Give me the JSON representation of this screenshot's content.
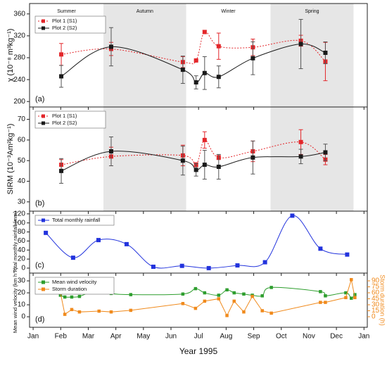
{
  "chart_data": [
    {
      "type": "line",
      "ylabel": "χ (10⁻⁸ m³kg⁻¹)",
      "panel_label": "(a)",
      "xlim": [
        0.87,
        13.12
      ],
      "ylim": [
        190,
        379
      ],
      "yticks": [
        200,
        240,
        280,
        320,
        360
      ],
      "seasons": [
        {
          "name": "Summer",
          "start": 0.87,
          "end": 3.55,
          "shaded": false
        },
        {
          "name": "Autumn",
          "start": 3.55,
          "end": 6.55,
          "shaded": true
        },
        {
          "name": "Winter",
          "start": 6.55,
          "end": 9.61,
          "shaded": false
        },
        {
          "name": "Spring",
          "start": 9.61,
          "end": 12.62,
          "shaded": true
        }
      ],
      "x": [
        2.02,
        3.83,
        6.43,
        6.91,
        7.22,
        7.73,
        8.97,
        10.71,
        11.6
      ],
      "series": [
        {
          "name": "Plot 1 (S1)",
          "color": "#e3262a",
          "line_style": "dotted",
          "values": [
            286,
            296,
            272,
            275,
            327,
            301,
            299,
            311,
            273
          ],
          "errors": [
            20,
            12,
            10,
            0,
            3,
            24,
            15,
            10,
            35
          ]
        },
        {
          "name": "Plot 2 (S2)",
          "color": "#1a1a1a",
          "line_style": "solid",
          "values": [
            246,
            300,
            258,
            235,
            252,
            245,
            279,
            305,
            289
          ],
          "errors": [
            20,
            35,
            25,
            12,
            30,
            20,
            30,
            45,
            20
          ]
        }
      ]
    },
    {
      "type": "line",
      "ylabel": "SIRM (10⁻³Am²kg⁻¹)",
      "panel_label": "(b)",
      "xlim": [
        0.87,
        13.12
      ],
      "ylim": [
        25.5,
        76
      ],
      "yticks": [
        30,
        40,
        50,
        60,
        70
      ],
      "shaded": [
        [
          3.55,
          6.55
        ],
        [
          9.61,
          12.62
        ]
      ],
      "x": [
        2.02,
        3.83,
        6.43,
        6.91,
        7.22,
        7.73,
        8.97,
        10.71,
        11.6
      ],
      "series": [
        {
          "name": "Plot 1 (S1)",
          "color": "#e3262a",
          "line_style": "dotted",
          "values": [
            48,
            52,
            52.5,
            48,
            60,
            51.5,
            54.5,
            59,
            50.5
          ],
          "errors": [
            2.5,
            4.5,
            5,
            1,
            4,
            1,
            5,
            6,
            2.5
          ]
        },
        {
          "name": "Plot 2 (S2)",
          "color": "#1a1a1a",
          "line_style": "solid",
          "values": [
            45,
            54.5,
            50,
            45.5,
            48,
            47,
            51.5,
            52,
            54
          ],
          "errors": [
            6,
            7,
            7,
            3,
            7,
            6,
            8,
            3.5,
            4
          ]
        }
      ]
    },
    {
      "type": "line",
      "ylabel": "Total monthly rainfall (mm)",
      "panel_label": "(c)",
      "xlim": [
        0.87,
        13.12
      ],
      "ylim": [
        -11,
        126
      ],
      "yticks": [
        0,
        20,
        40,
        60,
        80,
        100,
        120
      ],
      "x": [
        1.46,
        2.45,
        3.37,
        4.39,
        5.36,
        6.4,
        7.37,
        8.41,
        9.41,
        10.4,
        11.42,
        12.39
      ],
      "series": [
        {
          "name": "Total monthly rainfall",
          "color": "#2233dd",
          "line_style": "solid",
          "values": [
            78,
            23,
            62,
            53,
            3,
            5,
            0,
            6,
            13,
            116,
            43,
            30
          ]
        }
      ]
    },
    {
      "type": "line",
      "ylabel": "Mean wind velocity (km h⁻¹)",
      "y2label": "Storm duration (h)",
      "panel_label": "(d)",
      "xlabel": "Year 1995",
      "xlim": [
        0.87,
        13.12
      ],
      "xticks": [
        {
          "value": 1,
          "label": "Jan"
        },
        {
          "value": 2,
          "label": "Feb"
        },
        {
          "value": 3,
          "label": "Mar"
        },
        {
          "value": 4,
          "label": "Apr"
        },
        {
          "value": 5,
          "label": "May"
        },
        {
          "value": 6,
          "label": "Jun"
        },
        {
          "value": 7,
          "label": "Jul"
        },
        {
          "value": 8,
          "label": "Aug"
        },
        {
          "value": 9,
          "label": "Sep"
        },
        {
          "value": 10,
          "label": "Oct"
        },
        {
          "value": 11,
          "label": "Nov"
        },
        {
          "value": 12,
          "label": "Dec"
        },
        {
          "value": 13,
          "label": "Jan"
        }
      ],
      "ylim": [
        -8.8,
        36.5
      ],
      "yticks": [
        0,
        10,
        20,
        30
      ],
      "y2lim": [
        -26.5,
        109.4
      ],
      "y2ticks": [
        0,
        15,
        30,
        45,
        60,
        75,
        90
      ],
      "y2color": "#f08a1c",
      "x": [
        1.99,
        2.15,
        2.4,
        2.68,
        3.39,
        3.83,
        4.54,
        6.43,
        6.89,
        7.22,
        7.73,
        8.03,
        8.29,
        8.64,
        8.95,
        9.31,
        9.64,
        11.42,
        11.6,
        12.34,
        12.54,
        12.67
      ],
      "series": [
        {
          "name": "Mean wind velocity",
          "color": "#2e9e2e",
          "line_style": "solid",
          "smooth": true,
          "values": [
            18,
            16.5,
            16.5,
            17,
            23,
            19.5,
            18.5,
            19,
            23.5,
            20,
            18,
            22.5,
            20,
            19,
            18,
            17.5,
            24.5,
            21,
            17.5,
            20,
            15.5,
            18.5
          ]
        },
        {
          "name": "Storm duration",
          "color": "#f08a1c",
          "line_style": "solid",
          "smooth": false,
          "axis": "y2",
          "values": [
            60,
            6,
            18,
            12,
            14,
            12,
            16,
            33,
            21,
            39,
            45,
            3,
            39,
            12,
            51,
            15,
            9,
            36,
            36,
            48,
            93,
            48
          ]
        }
      ]
    }
  ]
}
